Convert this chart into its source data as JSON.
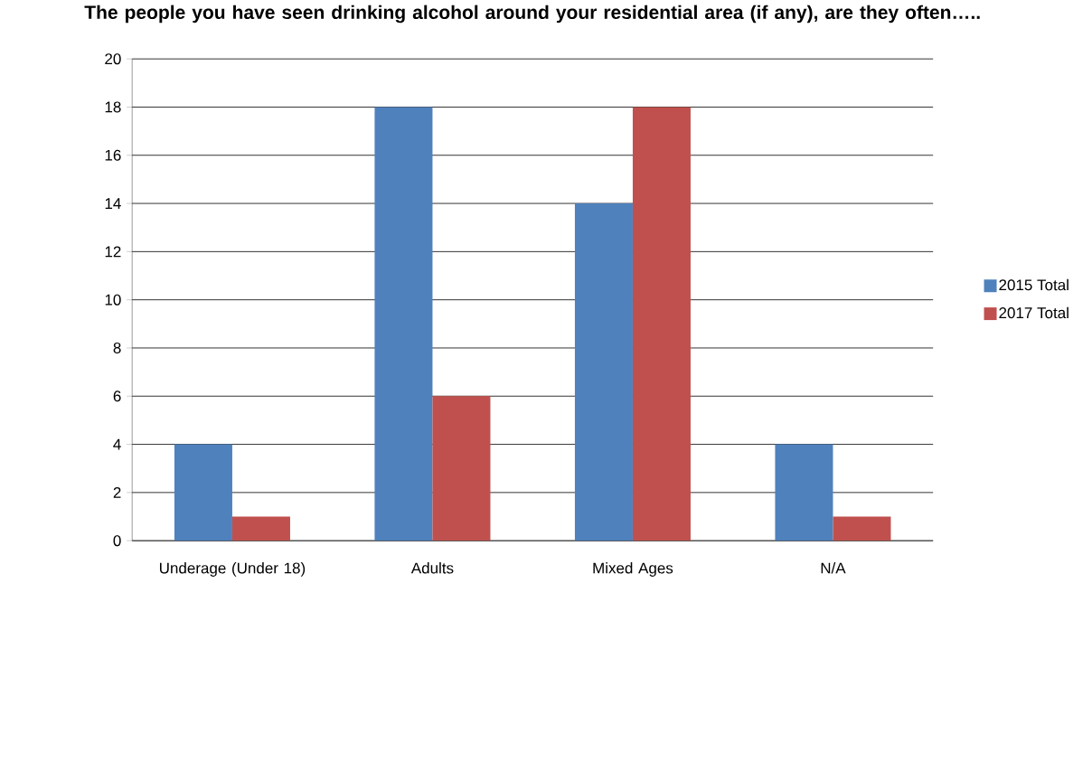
{
  "chart_data": {
    "type": "bar",
    "title": "The people you have seen drinking alcohol around your residential area (if any), are they often…..",
    "categories": [
      "Underage (Under 18)",
      "Adults",
      "Mixed Ages",
      "N/A"
    ],
    "series": [
      {
        "name": "2015 Total",
        "color": "#4f81bd",
        "values": [
          4,
          18,
          14,
          4
        ]
      },
      {
        "name": "2017 Total",
        "color": "#c0504d",
        "values": [
          1,
          6,
          18,
          1
        ]
      }
    ],
    "ylim": [
      0,
      20
    ],
    "yticks": [
      0,
      2,
      4,
      6,
      8,
      10,
      12,
      14,
      16,
      18,
      20
    ],
    "grid": "y",
    "legend": "right"
  }
}
